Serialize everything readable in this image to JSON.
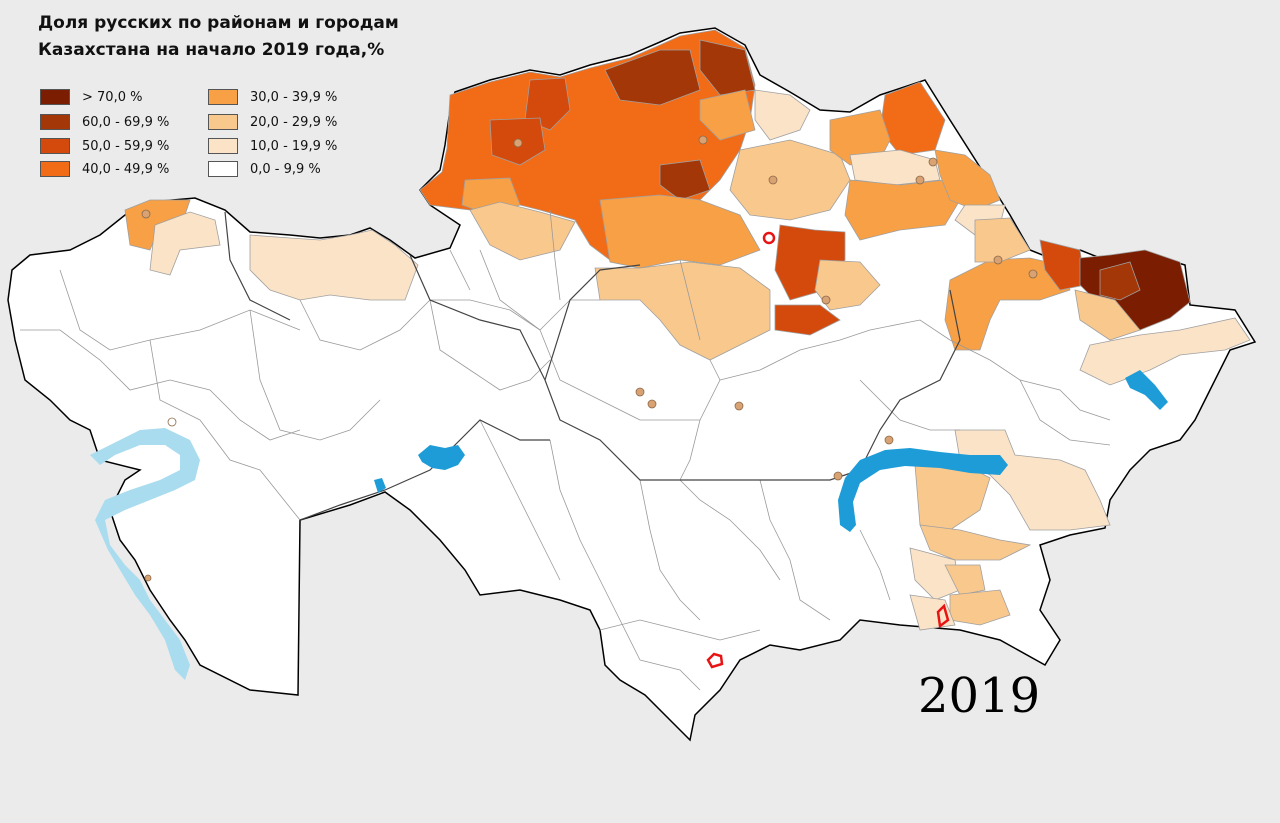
{
  "title": {
    "line1": "Доля русских по районам и городам",
    "line2": "Казахстана на начало 2019 года,%"
  },
  "year": "2019",
  "legend": [
    {
      "label": "> 70,0 %",
      "color": "#7a1d00"
    },
    {
      "label": "60,0 - 69,9 %",
      "color": "#a33708"
    },
    {
      "label": "50,0 - 59,9 %",
      "color": "#d44a0c"
    },
    {
      "label": "40,0 - 49,9 %",
      "color": "#f26b17"
    },
    {
      "label": "30,0 - 39,9 %",
      "color": "#f7a045"
    },
    {
      "label": "20,0 - 29,9 %",
      "color": "#f9c88d"
    },
    {
      "label": "10,0 - 19,9 %",
      "color": "#fbe3c8"
    },
    {
      "label": "0,0 - 9,9 %",
      "color": "#ffffff"
    }
  ],
  "colors": {
    "background": "#ebebeb",
    "water": "#1e9cd7",
    "water_light": "#a8dcee",
    "border": "#9a9a9a",
    "outline": "#000000",
    "city_marker": "#d9a273",
    "capital_marker": "#e81414"
  }
}
